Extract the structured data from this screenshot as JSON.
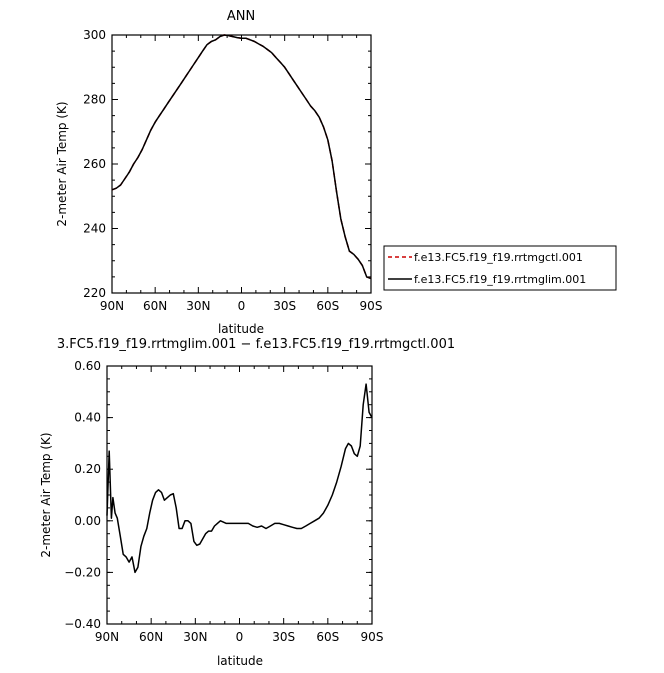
{
  "chart_data": [
    {
      "type": "line",
      "title": "ANN",
      "xlabel": "latitude",
      "ylabel": "2-meter Air Temp (K)",
      "xticks": [
        "90N",
        "60N",
        "30N",
        "0",
        "30S",
        "60S",
        "90S"
      ],
      "yticks": [
        "220",
        "240",
        "260",
        "280",
        "300"
      ],
      "ylim": [
        220,
        300
      ],
      "xlim": [
        90,
        -90
      ],
      "legend_position": "right",
      "series": [
        {
          "name": "f.e13.FC5.f19_f19.rrtmgctl.001",
          "color": "#cc0000",
          "style": "dashed",
          "x": [
            90,
            87,
            84,
            81,
            78,
            75,
            72,
            69,
            66,
            63,
            60,
            57,
            54,
            51,
            48,
            45,
            42,
            39,
            36,
            33,
            30,
            27,
            24,
            21,
            18,
            15,
            12,
            9,
            6,
            3,
            0,
            -3,
            -6,
            -9,
            -12,
            -15,
            -18,
            -21,
            -24,
            -27,
            -30,
            -33,
            -36,
            -39,
            -42,
            -45,
            -48,
            -51,
            -54,
            -57,
            -60,
            -63,
            -66,
            -69,
            -72,
            -75,
            -78,
            -81,
            -84,
            -87,
            -90
          ],
          "y": [
            252,
            252.5,
            253.5,
            255.5,
            257.5,
            260,
            262,
            264.5,
            267.5,
            270.5,
            273,
            275,
            277,
            279,
            281,
            283,
            285,
            287,
            289,
            291,
            293,
            295,
            297,
            298,
            298.5,
            299.5,
            300,
            299.8,
            299.5,
            299.2,
            299,
            299,
            298.5,
            298,
            297.2,
            296.5,
            295.5,
            294.5,
            293,
            291.5,
            290,
            288,
            286,
            284,
            282,
            280,
            278,
            276.5,
            274.5,
            271.5,
            267.5,
            261,
            251.5,
            243,
            237.5,
            233,
            232,
            230.5,
            228.5,
            225,
            224.5
          ]
        },
        {
          "name": "f.e13.FC5.f19_f19.rrtmglim.001",
          "color": "#000000",
          "style": "solid",
          "x": [
            90,
            87,
            84,
            81,
            78,
            75,
            72,
            69,
            66,
            63,
            60,
            57,
            54,
            51,
            48,
            45,
            42,
            39,
            36,
            33,
            30,
            27,
            24,
            21,
            18,
            15,
            12,
            9,
            6,
            3,
            0,
            -3,
            -6,
            -9,
            -12,
            -15,
            -18,
            -21,
            -24,
            -27,
            -30,
            -33,
            -36,
            -39,
            -42,
            -45,
            -48,
            -51,
            -54,
            -57,
            -60,
            -63,
            -66,
            -69,
            -72,
            -75,
            -78,
            -81,
            -84,
            -87,
            -90
          ],
          "y": [
            252,
            252.5,
            253.5,
            255.5,
            257.5,
            260,
            262,
            264.5,
            267.5,
            270.5,
            273,
            275,
            277,
            279,
            281,
            283,
            285,
            287,
            289,
            291,
            293,
            295,
            297,
            298,
            298.5,
            299.5,
            300,
            299.8,
            299.5,
            299.2,
            299,
            299,
            298.5,
            298,
            297.2,
            296.5,
            295.5,
            294.5,
            293,
            291.5,
            290,
            288,
            286,
            284,
            282,
            280,
            278,
            276.5,
            274.5,
            271.5,
            267.5,
            261,
            251.5,
            243,
            237.5,
            233,
            232,
            230.5,
            228.5,
            225,
            224.5
          ]
        }
      ]
    },
    {
      "type": "line",
      "title": "3.FC5.f19_f19.rrtmglim.001 − f.e13.FC5.f19_f19.rrtmgctl.001",
      "xlabel": "latitude",
      "ylabel": "2-meter Air Temp (K)",
      "xticks": [
        "90N",
        "60N",
        "30N",
        "0",
        "30S",
        "60S",
        "90S"
      ],
      "yticks": [
        "0.60",
        "0.40",
        "0.20",
        "0.00",
        "−0.20",
        "−0.40"
      ],
      "ylim": [
        -0.4,
        0.6
      ],
      "xlim": [
        90,
        -90
      ],
      "series": [
        {
          "color": "#000000",
          "style": "solid",
          "x": [
            90,
            88.5,
            87,
            86,
            84.5,
            83,
            81,
            79,
            77,
            75,
            73,
            71,
            69,
            67,
            65,
            63,
            61,
            59,
            57,
            55,
            53,
            51,
            49,
            47,
            45,
            43,
            41,
            39,
            37,
            35,
            33,
            31,
            29,
            27,
            25,
            23,
            21,
            19,
            17,
            15,
            13,
            11,
            9,
            7,
            5,
            3,
            1,
            -1,
            -3,
            -6,
            -9,
            -12,
            -15,
            -18,
            -21,
            -24,
            -27,
            -30,
            -33,
            -36,
            -39,
            -42,
            -45,
            -48,
            -51,
            -54,
            -57,
            -60,
            -63,
            -66,
            -69,
            -72,
            -74,
            -76,
            -78,
            -80,
            -82,
            -84,
            -86,
            -88,
            -90
          ],
          "y": [
            0.02,
            0.27,
            0.01,
            0.09,
            0.03,
            0.01,
            -0.06,
            -0.13,
            -0.14,
            -0.16,
            -0.14,
            -0.2,
            -0.18,
            -0.1,
            -0.06,
            -0.03,
            0.03,
            0.08,
            0.11,
            0.12,
            0.11,
            0.08,
            0.09,
            0.1,
            0.105,
            0.05,
            -0.03,
            -0.03,
            0,
            0,
            -0.01,
            -0.08,
            -0.095,
            -0.09,
            -0.07,
            -0.05,
            -0.04,
            -0.04,
            -0.02,
            -0.01,
            0,
            -0.005,
            -0.01,
            -0.01,
            -0.01,
            -0.01,
            -0.01,
            -0.01,
            -0.01,
            -0.01,
            -0.02,
            -0.025,
            -0.02,
            -0.03,
            -0.02,
            -0.01,
            -0.01,
            -0.015,
            -0.02,
            -0.025,
            -0.03,
            -0.03,
            -0.02,
            -0.01,
            0,
            0.01,
            0.03,
            0.06,
            0.1,
            0.15,
            0.21,
            0.28,
            0.3,
            0.29,
            0.26,
            0.25,
            0.29,
            0.45,
            0.53,
            0.42,
            0.4
          ]
        }
      ]
    }
  ]
}
